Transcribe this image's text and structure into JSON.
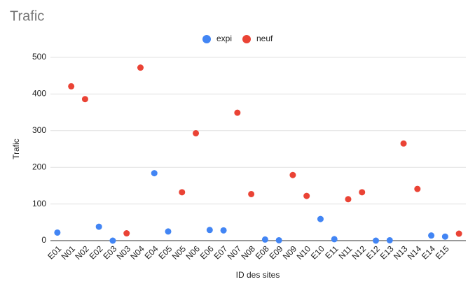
{
  "chart_data": {
    "type": "scatter",
    "title": "Trafic",
    "x_label": "ID des sites",
    "y_label": "Trafic",
    "categories": [
      "E01",
      "N01",
      "N02",
      "E02",
      "E03",
      "N03",
      "N04",
      "E04",
      "E05",
      "N05",
      "N06",
      "E06",
      "E07",
      "N07",
      "N08",
      "E08",
      "E09",
      "N09",
      "N10",
      "E10",
      "E11",
      "N11",
      "N12",
      "E12",
      "E13",
      "N13",
      "N14",
      "E14",
      "E15",
      null
    ],
    "series": [
      {
        "name": "expi",
        "color": "#4285f4",
        "values": [
          22,
          null,
          null,
          38,
          0,
          null,
          null,
          184,
          25,
          null,
          null,
          29,
          28,
          null,
          null,
          3,
          1,
          null,
          null,
          59,
          4,
          null,
          null,
          0,
          1,
          null,
          null,
          14,
          11,
          null
        ]
      },
      {
        "name": "neuf",
        "color": "#ea4335",
        "values": [
          null,
          421,
          386,
          null,
          null,
          20,
          472,
          null,
          null,
          132,
          293,
          null,
          null,
          349,
          127,
          null,
          null,
          179,
          122,
          null,
          null,
          113,
          132,
          null,
          null,
          265,
          141,
          null,
          null,
          19
        ]
      }
    ],
    "ylim": [
      0,
      500
    ],
    "yticks": [
      0,
      100,
      200,
      300,
      400,
      500
    ],
    "grid": true,
    "legend": "top"
  }
}
